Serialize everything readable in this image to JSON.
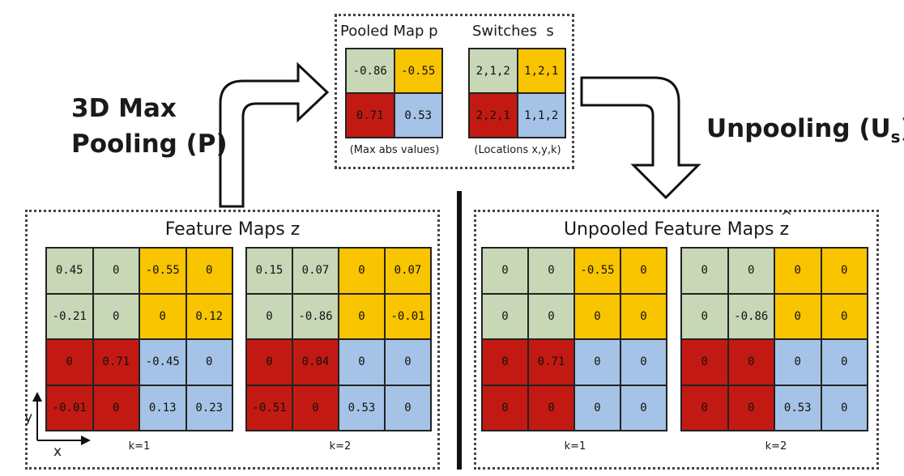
{
  "colors": {
    "green": "#c8d7b6",
    "yellow": "#f9c400",
    "red": "#c21a12",
    "blue": "#a5c3e6"
  },
  "labels": {
    "pooling_line1": "3D Max",
    "pooling_line2": "Pooling (P)",
    "unpooling_main": "Unpooling (U",
    "unpooling_sub": "s",
    "unpooling_close": ")"
  },
  "pooled_map": {
    "title": "Pooled Map p",
    "caption": "(Max abs values)",
    "cells": [
      [
        "-0.86",
        "-0.55"
      ],
      [
        "0.71",
        "0.53"
      ]
    ]
  },
  "switches": {
    "title": "Switches  s",
    "caption": "(Locations x,y,k)",
    "cells": [
      [
        "2,1,2",
        "1,2,1"
      ],
      [
        "2,2,1",
        "1,1,2"
      ]
    ]
  },
  "feature_maps": {
    "title": "Feature Maps z",
    "k1_label": "k=1",
    "k2_label": "k=2",
    "k1": [
      [
        "0.45",
        "0",
        "-0.55",
        "0"
      ],
      [
        "-0.21",
        "0",
        "0",
        "0.12"
      ],
      [
        "0",
        "0.71",
        "-0.45",
        "0"
      ],
      [
        "-0.01",
        "0",
        "0.13",
        "0.23"
      ]
    ],
    "k2": [
      [
        "0.15",
        "0.07",
        "0",
        "0.07"
      ],
      [
        "0",
        "-0.86",
        "0",
        "-0.01"
      ],
      [
        "0",
        "0.04",
        "0",
        "0"
      ],
      [
        "-0.51",
        "0",
        "0.53",
        "0"
      ]
    ]
  },
  "unpooled_maps": {
    "title": "Unpooled Feature Maps ",
    "title_symbol": "z",
    "title_hat": "^",
    "k1_label": "k=1",
    "k2_label": "k=2",
    "k1": [
      [
        "0",
        "0",
        "-0.55",
        "0"
      ],
      [
        "0",
        "0",
        "0",
        "0"
      ],
      [
        "0",
        "0.71",
        "0",
        "0"
      ],
      [
        "0",
        "0",
        "0",
        "0"
      ]
    ],
    "k2": [
      [
        "0",
        "0",
        "0",
        "0"
      ],
      [
        "0",
        "-0.86",
        "0",
        "0"
      ],
      [
        "0",
        "0",
        "0",
        "0"
      ],
      [
        "0",
        "0",
        "0.53",
        "0"
      ]
    ]
  },
  "axes": {
    "x": "x",
    "y": "y"
  }
}
